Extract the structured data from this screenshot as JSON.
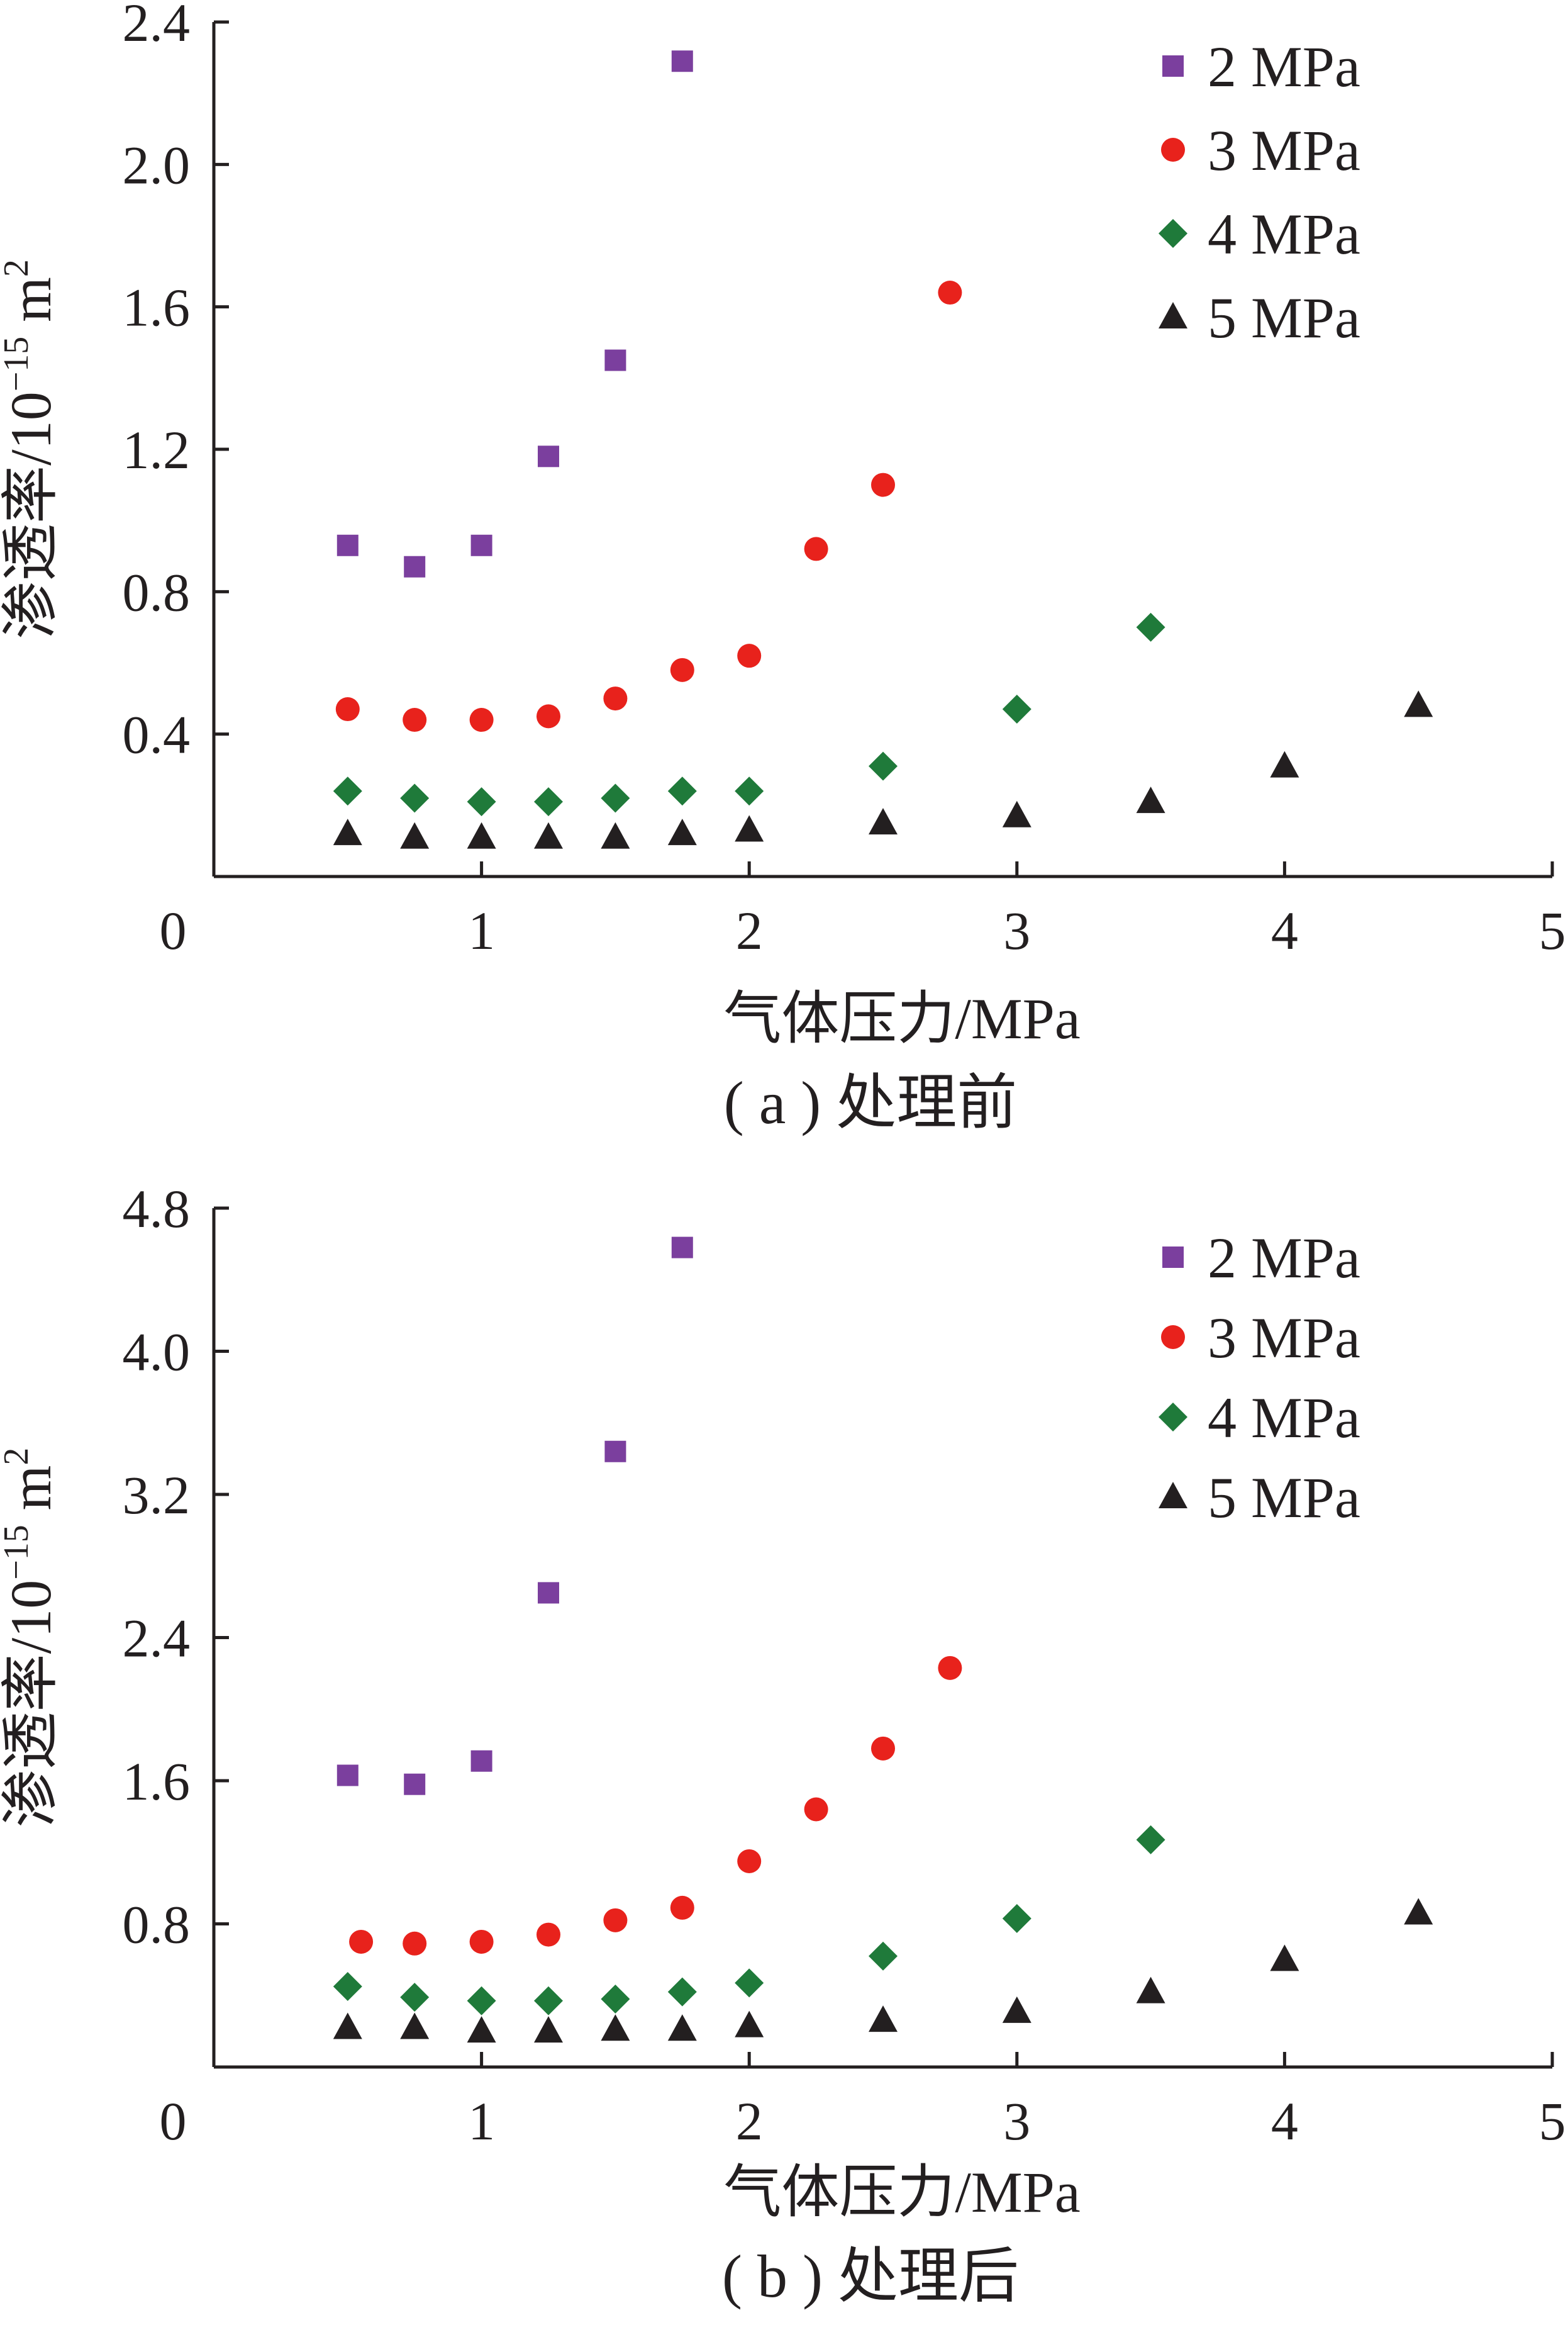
{
  "chart_data": [
    {
      "type": "scatter",
      "caption": "( a ) 处理前",
      "xlabel": "气体压力/MPa",
      "ylabel_main": "渗透率/10",
      "ylabel_sup": "−15",
      "ylabel_unit": " m",
      "ylabel_unit_sup": "2",
      "xlim": [
        0,
        5
      ],
      "ylim": [
        0,
        2.4
      ],
      "xticks": [
        "0",
        "1",
        "2",
        "3",
        "4",
        "5"
      ],
      "yticks": [
        "0.4",
        "0.8",
        "1.2",
        "1.6",
        "2.0",
        "2.4"
      ],
      "xtick_values": [
        0,
        1,
        2,
        3,
        4,
        5
      ],
      "ytick_values": [
        0.4,
        0.8,
        1.2,
        1.6,
        2.0,
        2.4
      ],
      "legend_position": "top-right",
      "series": [
        {
          "name": "2 MPa",
          "marker": "square",
          "color": "#7b3f9e",
          "x": [
            0.5,
            0.75,
            1.0,
            1.25,
            1.5,
            1.75
          ],
          "y": [
            0.93,
            0.87,
            0.93,
            1.18,
            1.45,
            2.29
          ]
        },
        {
          "name": "3 MPa",
          "marker": "circle",
          "color": "#e8221c",
          "x": [
            0.5,
            0.75,
            1.0,
            1.25,
            1.5,
            1.75,
            2.0,
            2.25,
            2.5,
            2.75
          ],
          "y": [
            0.47,
            0.44,
            0.44,
            0.45,
            0.5,
            0.58,
            0.62,
            0.92,
            1.1,
            1.64
          ]
        },
        {
          "name": "4 MPa",
          "marker": "diamond",
          "color": "#1f7a3a",
          "x": [
            0.5,
            0.75,
            1.0,
            1.25,
            1.5,
            1.75,
            2.0,
            2.5,
            3.0,
            3.5
          ],
          "y": [
            0.24,
            0.22,
            0.21,
            0.21,
            0.22,
            0.24,
            0.24,
            0.31,
            0.47,
            0.7
          ]
        },
        {
          "name": "5 MPa",
          "marker": "triangle",
          "color": "#231f20",
          "x": [
            0.5,
            0.75,
            1.0,
            1.25,
            1.5,
            1.75,
            2.0,
            2.5,
            3.0,
            3.5,
            4.0,
            4.5
          ],
          "y": [
            0.12,
            0.11,
            0.11,
            0.11,
            0.11,
            0.12,
            0.13,
            0.15,
            0.17,
            0.21,
            0.31,
            0.48
          ]
        }
      ]
    },
    {
      "type": "scatter",
      "caption": "( b ) 处理后",
      "xlabel": "气体压力/MPa",
      "ylabel_main": "渗透率/10",
      "ylabel_sup": "−15",
      "ylabel_unit": " m",
      "ylabel_unit_sup": "2",
      "xlim": [
        0,
        5
      ],
      "ylim": [
        0,
        4.8
      ],
      "xticks": [
        "0",
        "1",
        "2",
        "3",
        "4",
        "5"
      ],
      "yticks": [
        "0.8",
        "1.6",
        "2.4",
        "3.2",
        "4.0",
        "4.8"
      ],
      "xtick_values": [
        0,
        1,
        2,
        3,
        4,
        5
      ],
      "ytick_values": [
        0.8,
        1.6,
        2.4,
        3.2,
        4.0,
        4.8
      ],
      "legend_position": "top-right",
      "series": [
        {
          "name": "2 MPa",
          "marker": "square",
          "color": "#7b3f9e",
          "x": [
            0.5,
            0.75,
            1.0,
            1.25,
            1.5,
            1.75
          ],
          "y": [
            1.63,
            1.58,
            1.71,
            2.65,
            3.44,
            4.58
          ]
        },
        {
          "name": "3 MPa",
          "marker": "circle",
          "color": "#e8221c",
          "x": [
            0.55,
            0.75,
            1.0,
            1.25,
            1.5,
            1.75,
            2.0,
            2.25,
            2.5,
            2.75
          ],
          "y": [
            0.7,
            0.69,
            0.7,
            0.74,
            0.82,
            0.89,
            1.15,
            1.44,
            1.78,
            2.23
          ]
        },
        {
          "name": "4 MPa",
          "marker": "diamond",
          "color": "#1f7a3a",
          "x": [
            0.5,
            0.75,
            1.0,
            1.25,
            1.5,
            1.75,
            2.0,
            2.5,
            3.0,
            3.5
          ],
          "y": [
            0.45,
            0.39,
            0.37,
            0.37,
            0.38,
            0.42,
            0.47,
            0.62,
            0.83,
            1.27
          ]
        },
        {
          "name": "5 MPa",
          "marker": "triangle",
          "color": "#231f20",
          "x": [
            0.5,
            0.75,
            1.0,
            1.25,
            1.5,
            1.75,
            2.0,
            2.5,
            3.0,
            3.5,
            4.0,
            4.5
          ],
          "y": [
            0.22,
            0.22,
            0.2,
            0.2,
            0.21,
            0.21,
            0.23,
            0.26,
            0.31,
            0.42,
            0.6,
            0.86
          ]
        }
      ]
    }
  ]
}
